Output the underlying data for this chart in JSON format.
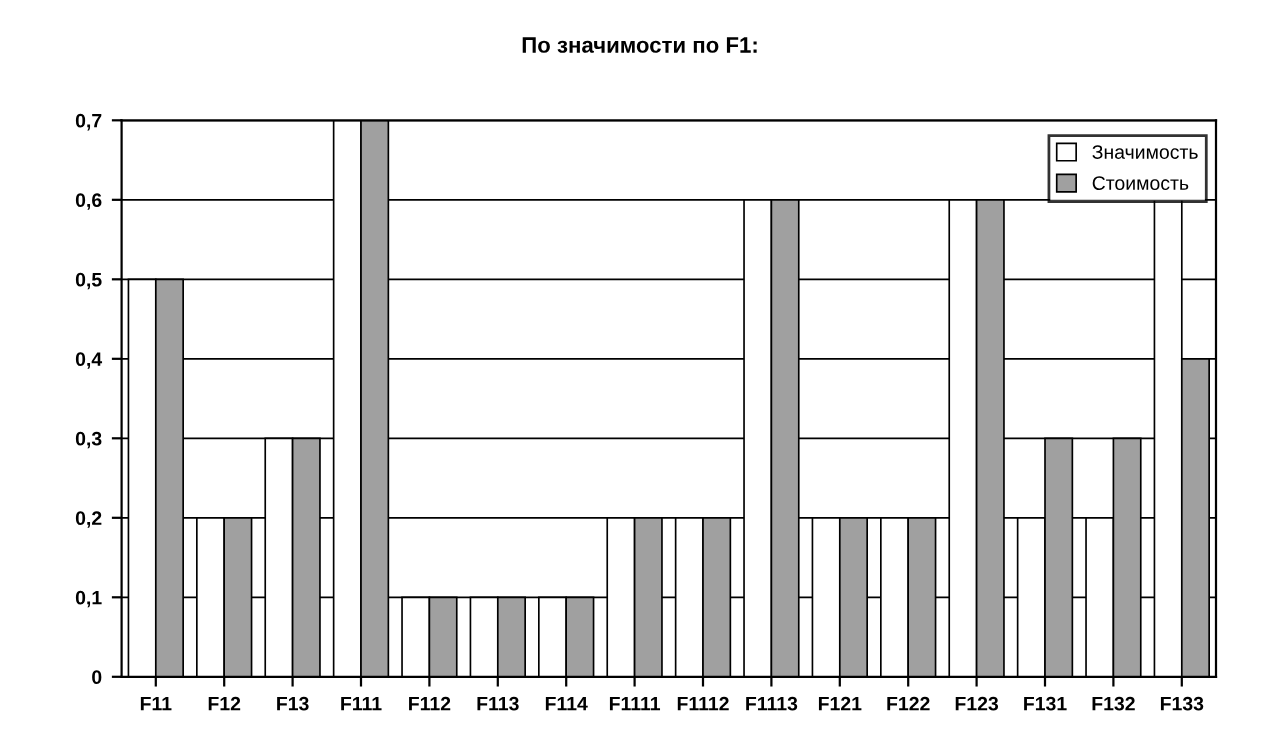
{
  "chart_data": {
    "type": "bar",
    "title": "По значимости по F1:",
    "categories": [
      "F11",
      "F12",
      "F13",
      "F111",
      "F112",
      "F113",
      "F114",
      "F1111",
      "F1112",
      "F1113",
      "F121",
      "F122",
      "F123",
      "F131",
      "F132",
      "F133"
    ],
    "series": [
      {
        "name": "Значимость",
        "color": "#ffffff",
        "values": [
          0.5,
          0.2,
          0.3,
          0.7,
          0.1,
          0.1,
          0.1,
          0.2,
          0.2,
          0.6,
          0.2,
          0.2,
          0.6,
          0.2,
          0.2,
          0.6
        ]
      },
      {
        "name": "Стоимость",
        "color": "#a0a0a0",
        "values": [
          0.5,
          0.2,
          0.3,
          0.7,
          0.1,
          0.1,
          0.1,
          0.2,
          0.2,
          0.6,
          0.2,
          0.2,
          0.6,
          0.3,
          0.3,
          0.4
        ]
      }
    ],
    "ylim": [
      0,
      0.7
    ],
    "yticks": [
      0,
      {
        "value": 0.1,
        "label": "0,1"
      },
      {
        "value": 0.2,
        "label": "0,2"
      },
      {
        "value": 0.3,
        "label": "0,3"
      },
      {
        "value": 0.4,
        "label": "0,4"
      },
      {
        "value": 0.5,
        "label": "0,5"
      },
      {
        "value": 0.6,
        "label": "0,6"
      },
      {
        "value": 0.7,
        "label": "0,7"
      }
    ],
    "grid": "y",
    "legend": "top right"
  }
}
